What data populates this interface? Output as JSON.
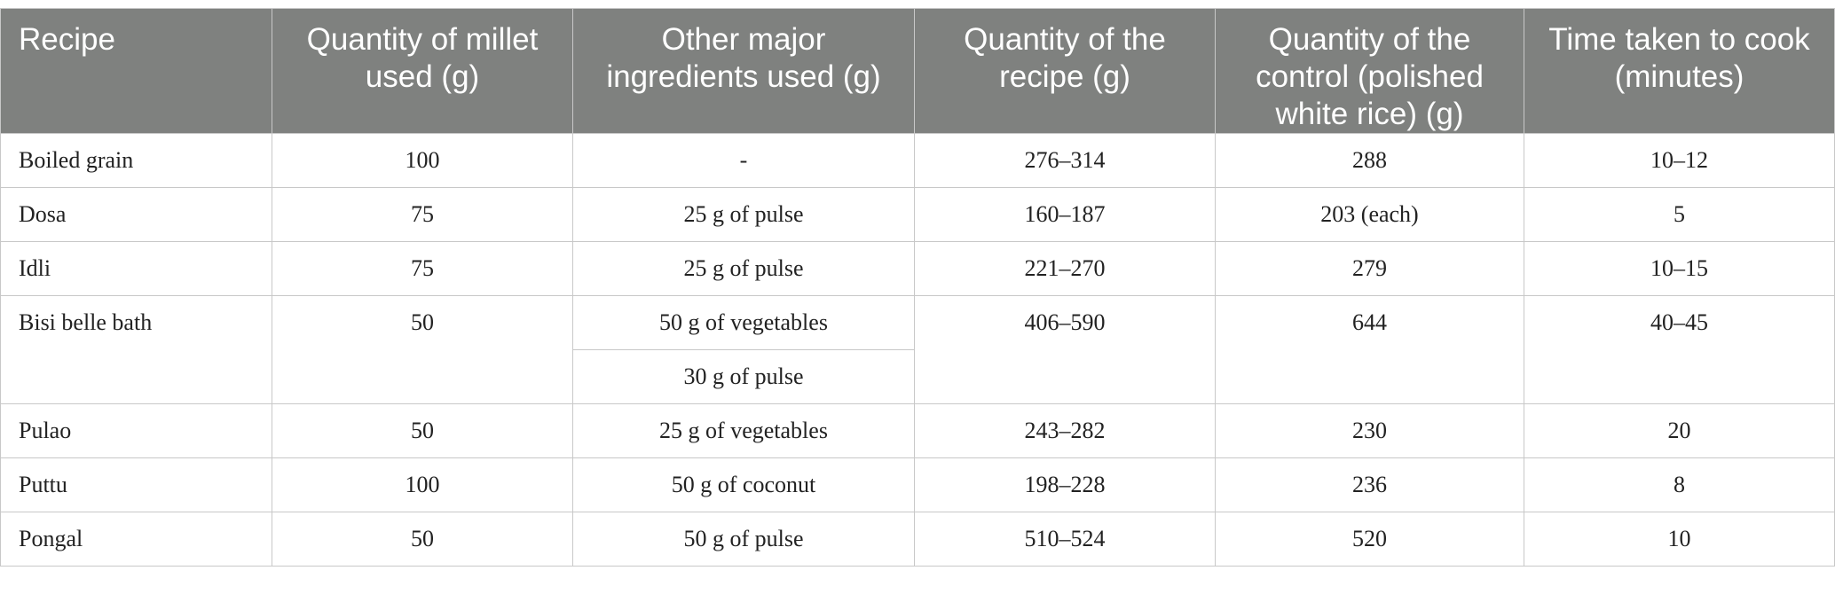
{
  "table": {
    "headers": [
      "Recipe",
      "Quantity of millet used (g)",
      "Other major ingredients used (g)",
      "Quantity of the recipe (g)",
      "Quantity of the control (polished white rice) (g)",
      "Time taken to cook (minutes)"
    ],
    "rows": [
      {
        "recipe": "Boiled grain",
        "millet": "100",
        "ingredients": [
          "-"
        ],
        "recipe_qty": "276–314",
        "control": "288",
        "time": "10–12"
      },
      {
        "recipe": "Dosa",
        "millet": "75",
        "ingredients": [
          "25 g of pulse"
        ],
        "recipe_qty": "160–187",
        "control": "203 (each)",
        "time": "5"
      },
      {
        "recipe": "Idli",
        "millet": "75",
        "ingredients": [
          "25 g of pulse"
        ],
        "recipe_qty": "221–270",
        "control": "279",
        "time": "10–15"
      },
      {
        "recipe": "Bisi belle bath",
        "millet": "50",
        "ingredients": [
          "50 g of vegetables",
          "30 g of pulse"
        ],
        "recipe_qty": "406–590",
        "control": "644",
        "time": "40–45"
      },
      {
        "recipe": "Pulao",
        "millet": "50",
        "ingredients": [
          "25 g of vegetables"
        ],
        "recipe_qty": "243–282",
        "control": "230",
        "time": "20"
      },
      {
        "recipe": "Puttu",
        "millet": "100",
        "ingredients": [
          "50 g of coconut"
        ],
        "recipe_qty": "198–228",
        "control": "236",
        "time": "8"
      },
      {
        "recipe": "Pongal",
        "millet": "50",
        "ingredients": [
          "50 g of pulse"
        ],
        "recipe_qty": "510–524",
        "control": "520",
        "time": "10"
      }
    ]
  }
}
